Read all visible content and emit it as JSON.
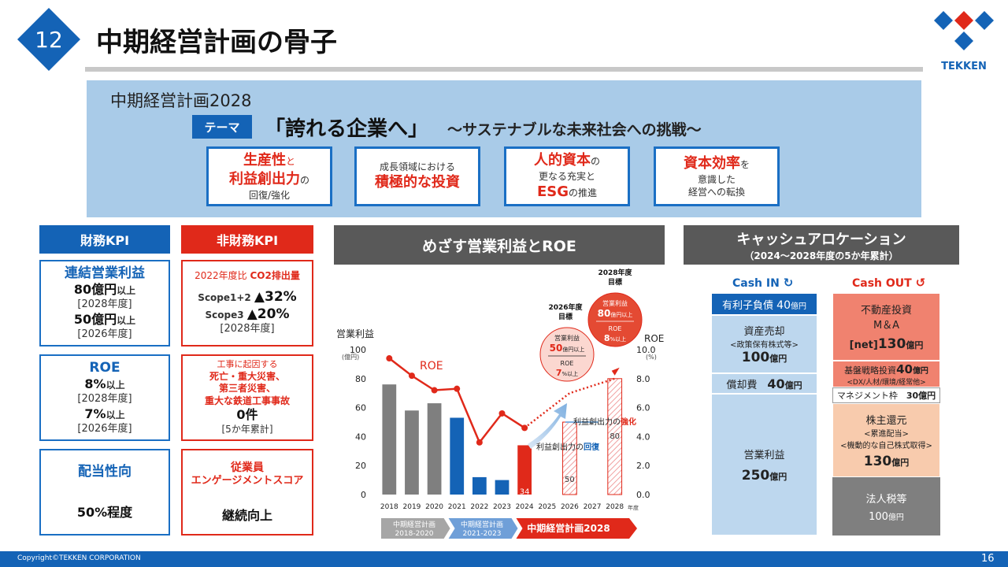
{
  "header": {
    "section_number": "12",
    "title": "中期経営計画の骨子",
    "logo_text": "TEKKEN"
  },
  "plan": {
    "name": "中期経営計画2028",
    "theme_tag": "テーマ",
    "theme_main": "「誇れる企業へ」",
    "theme_sub": "～サステナブルな未来社会への挑戦～",
    "pillars": [
      {
        "l1_red": "生産性",
        "l1_small": "と",
        "l2_red": "利益創出力",
        "l2_small": "の",
        "l3": "回復/強化"
      },
      {
        "l1": "成長領域における",
        "l2_red": "積極的な投資"
      },
      {
        "l1_red": "人的資本",
        "l1_small": "の",
        "l2": "更なる充実と",
        "l3_red": "ESG",
        "l3_small": "の推進"
      },
      {
        "l1_red": "資本効率",
        "l1_small": "を",
        "l2": "意識した",
        "l3": "経営への転換"
      }
    ]
  },
  "kpi": {
    "financial_head": "財務KPI",
    "nonfinancial_head": "非財務KPI",
    "fin_blocks": [
      {
        "title": "連結営業利益",
        "v1": "80億円",
        "u1": "以上",
        "y1": "[2028年度]",
        "v2": "50億円",
        "u2": "以上",
        "y2": "[2026年度]"
      },
      {
        "title": "ROE",
        "v1": "8%",
        "u1": "以上",
        "y1": "[2028年度]",
        "v2": "7%",
        "u2": "以上",
        "y2": "[2026年度]"
      },
      {
        "title": "配当性向",
        "value": "50%程度"
      }
    ],
    "co2": {
      "prefix": "2022年度比",
      "title": "CO2排出量",
      "s1_label": "Scope1+2",
      "s1_value": "▲32%",
      "s3_label": "Scope3",
      "s3_value": "▲20%",
      "year": "[2028年度]"
    },
    "safety": {
      "caption": "工事に起因する",
      "l1": "死亡・重大災害、",
      "l2": "第三者災害、",
      "l3": "重大な鉄道工事事故",
      "value": "0件",
      "period": "[5か年累計]"
    },
    "engagement": {
      "l1": "従業員",
      "l2": "エンゲージメントスコア",
      "value": "継続向上"
    }
  },
  "chart_head": "めざす営業利益とROE",
  "chart_data": {
    "type": "bar",
    "title": "めざす営業利益とROE",
    "categories": [
      "2018",
      "2019",
      "2020",
      "2021",
      "2022",
      "2023",
      "2024",
      "2025",
      "2026",
      "2027",
      "2028"
    ],
    "x_unit": "年度",
    "series": [
      {
        "name": "営業利益",
        "unit": "(億円)",
        "values": [
          76,
          58,
          63,
          53,
          12,
          10,
          34,
          null,
          50,
          null,
          80
        ]
      },
      {
        "name": "ROE",
        "unit": "(%)",
        "values": [
          9.4,
          8.2,
          7.2,
          7.3,
          3.6,
          5.6,
          4.6,
          null,
          7.0,
          null,
          8.0
        ]
      }
    ],
    "ylabel": "営業利益",
    "y2label": "ROE",
    "ylim": [
      0,
      100
    ],
    "y2lim": [
      0,
      10
    ],
    "yticks": [
      "0",
      "20",
      "40",
      "60",
      "80",
      "100"
    ],
    "y2ticks": [
      "0.0",
      "2.0",
      "4.0",
      "6.0",
      "8.0",
      "10.0"
    ],
    "ylabel_unit": "(億円)",
    "y2label_unit": "(%)",
    "roe_label": "ROE",
    "bar_labels": {
      "2024": "34",
      "2026": "50",
      "2028": "80"
    },
    "annotations": {
      "recover_prefix": "利益創出力の",
      "recover_key": "回復",
      "strengthen_prefix": "利益創出力の",
      "strengthen_key": "強化"
    },
    "targets": [
      {
        "year": "2026年度",
        "label": "目標",
        "op_title": "営業利益",
        "op_value": "50",
        "op_unit": "億円以上",
        "roe_title": "ROE",
        "roe_value": "7",
        "roe_unit": "%以上"
      },
      {
        "year": "2028年度",
        "label": "目標",
        "op_title": "営業利益",
        "op_value": "80",
        "op_unit": "億円以上",
        "roe_title": "ROE",
        "roe_value": "8",
        "roe_unit": "%以上"
      }
    ],
    "periods": [
      {
        "l1": "中期経営計画",
        "l2": "2018-2020"
      },
      {
        "l1": "中期経営計画",
        "l2": "2021-2023"
      },
      {
        "l1": "中期経営計画2028"
      }
    ]
  },
  "cash": {
    "title": "キャッシュアロケーション",
    "subtitle": "（2024～2028年度の5か年累計）",
    "in_label": "Cash IN",
    "out_label": "Cash OUT",
    "in_items": [
      {
        "label": "有利子負債",
        "value": "40",
        "unit": "億円"
      },
      {
        "l1": "資産売却",
        "l2": "<政策保有株式等>",
        "value": "100",
        "unit": "億円"
      },
      {
        "label": "償却費",
        "value": "40",
        "unit": "億円"
      },
      {
        "label": "営業利益",
        "value": "250",
        "unit": "億円"
      }
    ],
    "out_items": [
      {
        "l1": "不動産投資",
        "l2": "M＆A",
        "prefix": "[net]",
        "value": "130",
        "unit": "億円"
      },
      {
        "label": "基盤戦略投資",
        "value": "40",
        "unit": "億円",
        "sub": "<DX/人材/環境/経常他>"
      },
      {
        "label": "マネジメント枠",
        "value": "30億円"
      },
      {
        "l1": "株主還元",
        "l2": "<累進配当>",
        "l3": "<機動的な自己株式取得>",
        "value": "130",
        "unit": "億円"
      },
      {
        "label": "法人税等",
        "value": "100",
        "unit": "億円"
      }
    ]
  },
  "footer": {
    "copyright": "Copyright©TEKKEN CORPORATION",
    "page": "16"
  },
  "colors": {
    "brand_blue": "#1463b6",
    "accent_red": "#e0291a",
    "banner": "#a9cbe8",
    "dark_gray": "#595959"
  }
}
